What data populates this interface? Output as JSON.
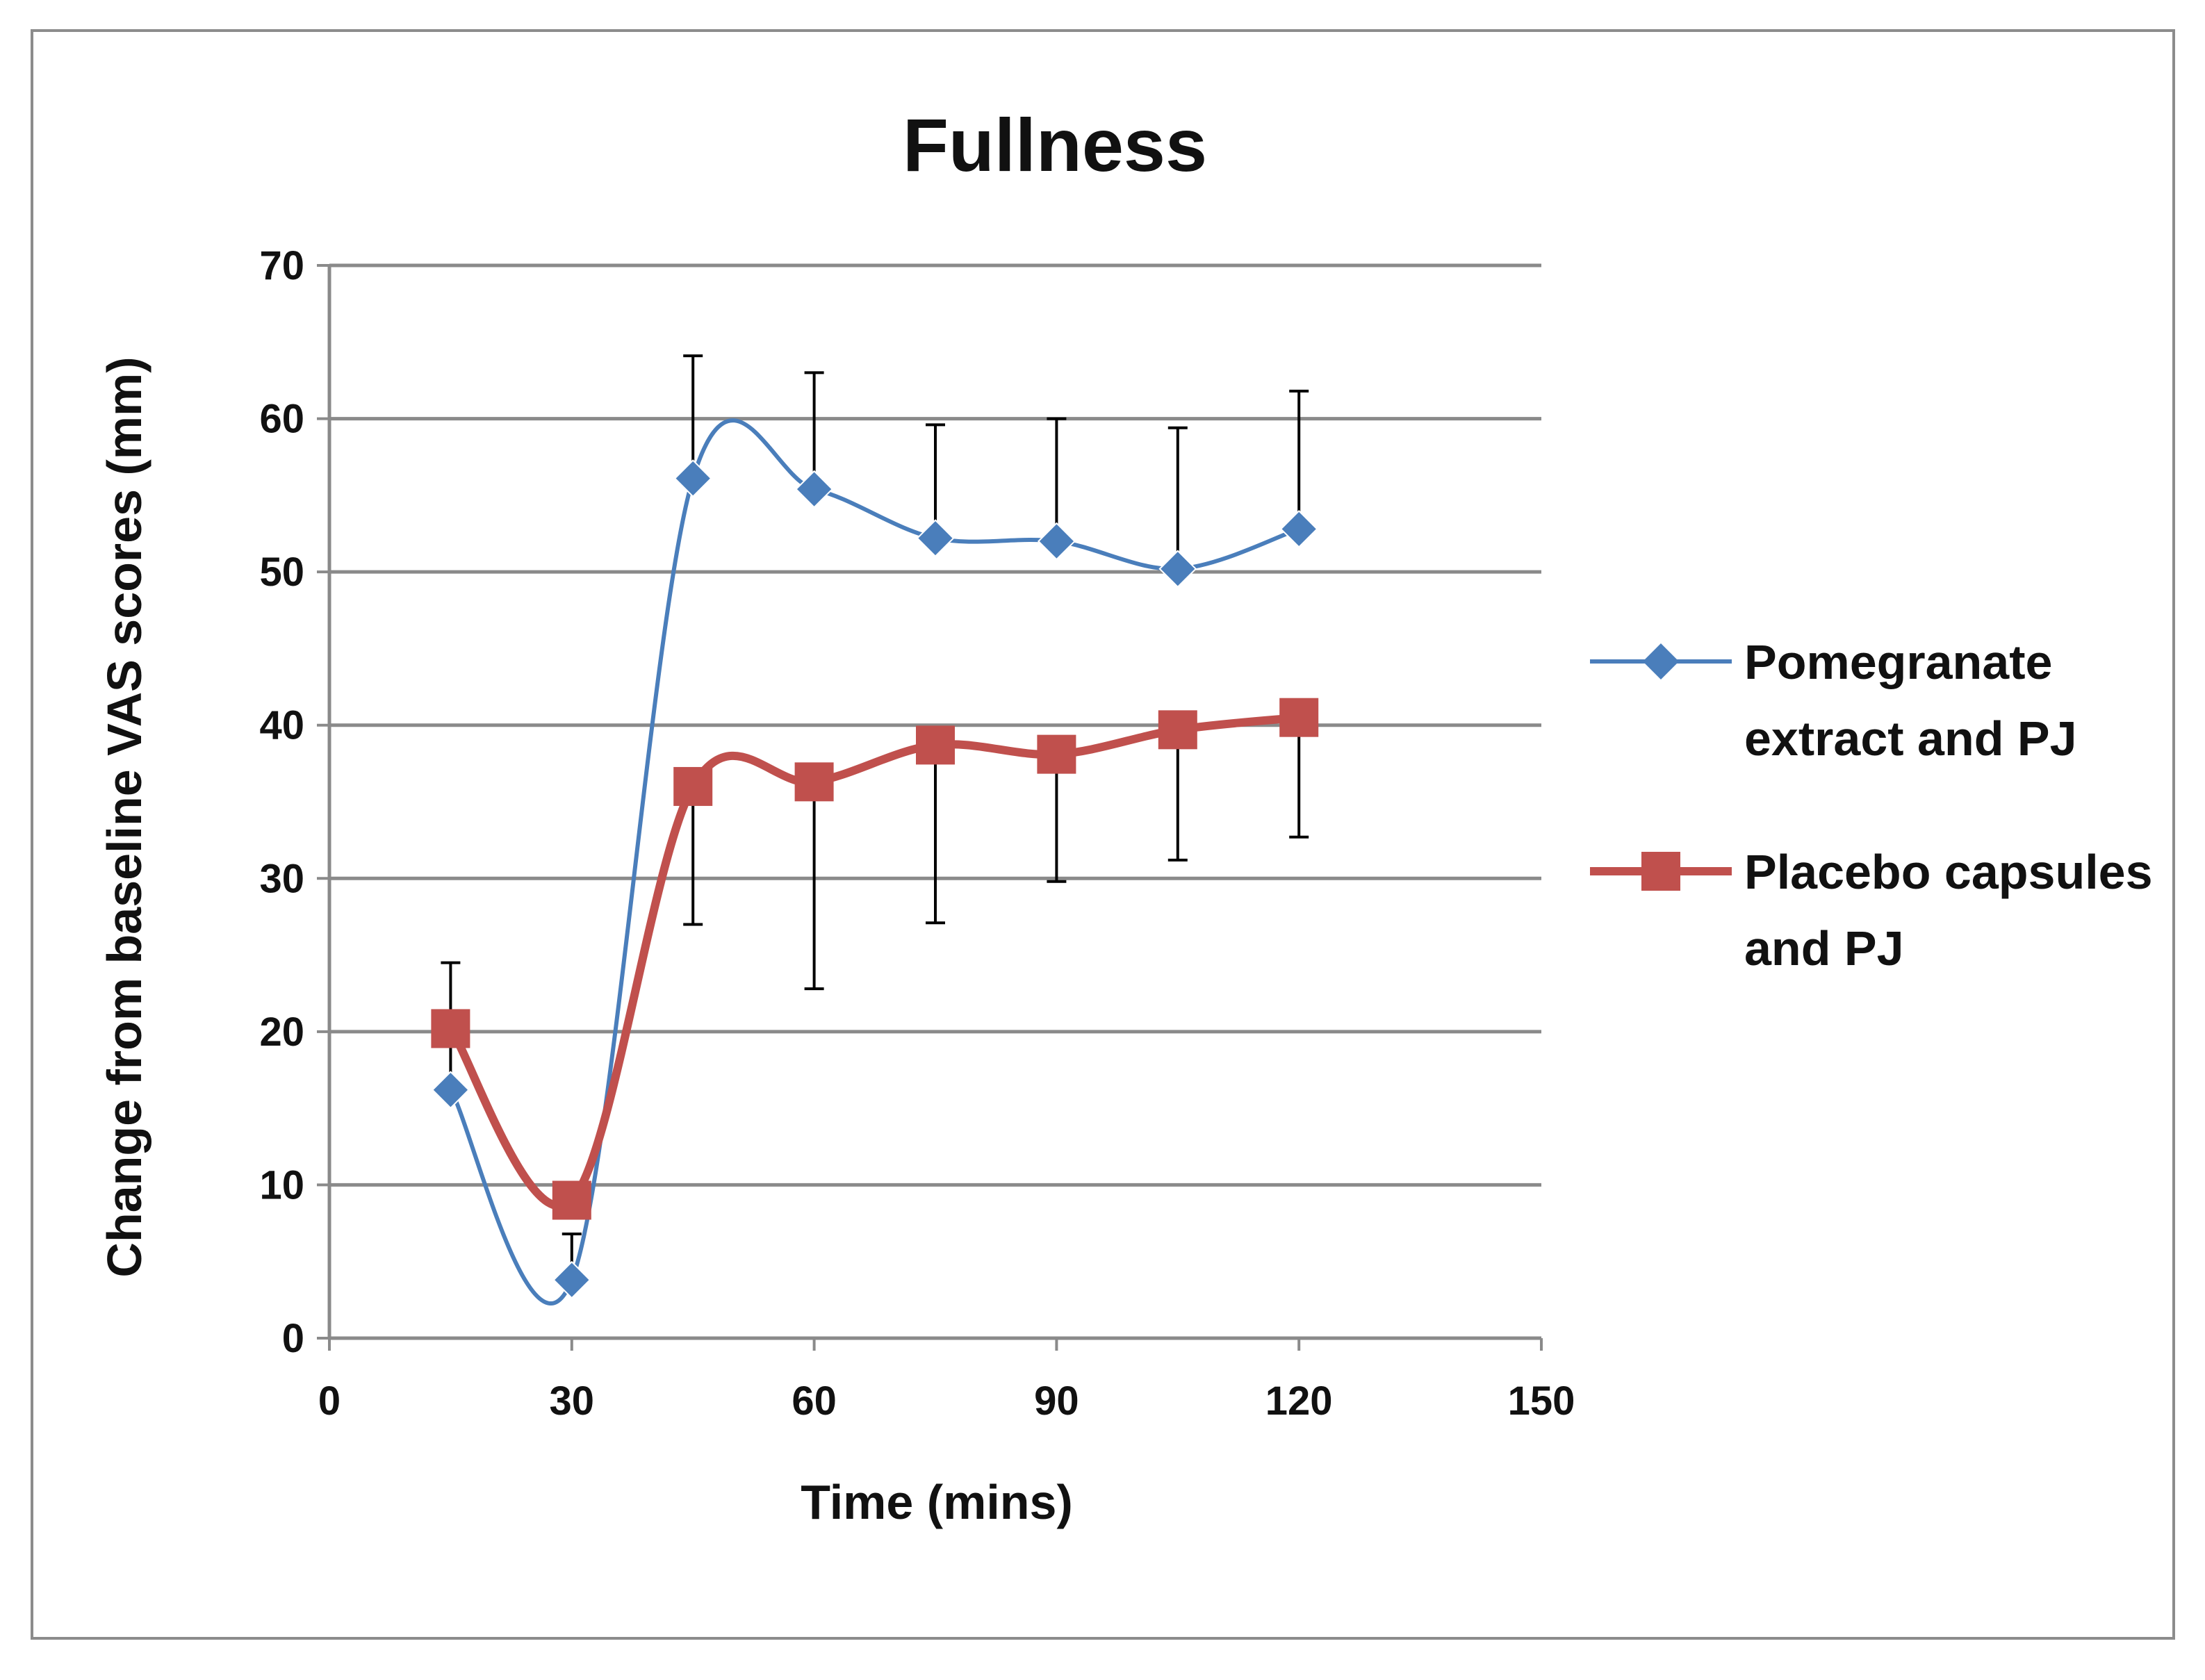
{
  "chart_data": {
    "type": "line",
    "title": "Fullness",
    "xlabel": "Time (mins)",
    "ylabel": "Change from baseline VAS scores (mm)",
    "xlim": [
      0,
      150
    ],
    "ylim": [
      0,
      70
    ],
    "x_ticks": [
      0,
      30,
      60,
      90,
      120,
      150
    ],
    "y_ticks": [
      0,
      10,
      20,
      30,
      40,
      50,
      60,
      70
    ],
    "grid": true,
    "legend_position": "right",
    "x": [
      15,
      30,
      45,
      60,
      75,
      90,
      105,
      120
    ],
    "series": [
      {
        "name": "Pomegranate extract and PJ",
        "legend_lines": [
          "Pomegranate",
          "extract and PJ"
        ],
        "color": "#4a7ebb",
        "marker": "diamond",
        "values": [
          16.2,
          3.8,
          56.1,
          55.4,
          52.2,
          52.0,
          50.2,
          52.8
        ],
        "error": [
          8.3,
          3.0,
          8.0,
          7.6,
          7.4,
          8.0,
          9.2,
          9.0
        ]
      },
      {
        "name": "Placebo capsules and PJ",
        "legend_lines": [
          "Placebo capsules",
          "and PJ"
        ],
        "color": "#c0504d",
        "marker": "square",
        "values": [
          20.2,
          9.0,
          36.0,
          36.3,
          38.7,
          38.1,
          39.7,
          40.5
        ],
        "error": [
          0,
          0,
          9.0,
          13.5,
          11.6,
          8.3,
          8.5,
          7.8
        ]
      }
    ]
  }
}
